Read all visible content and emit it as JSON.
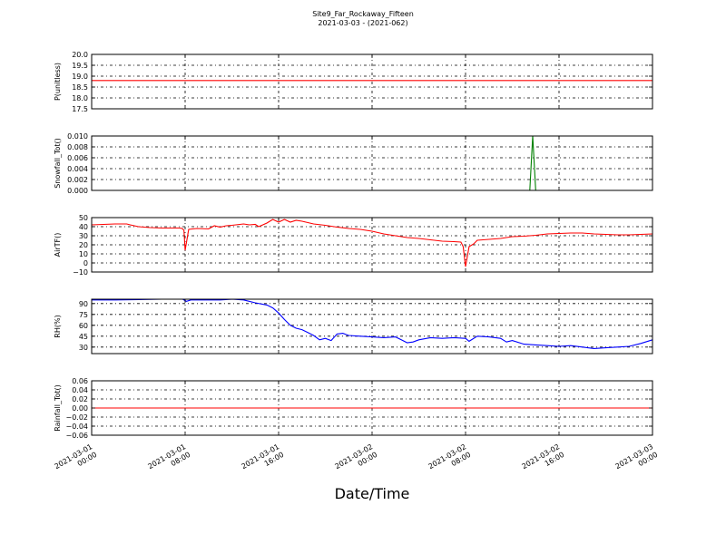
{
  "figure": {
    "title": "Site9_Far_Rockaway_Fifteen",
    "subtitle": "2021-03-03 - (2021-062)",
    "xlabel": "Date/Time"
  },
  "x_ticks": [
    {
      "t": 0,
      "line1": "2021-03-01",
      "line2": "00:00"
    },
    {
      "t": 8,
      "line1": "2021-03-01",
      "line2": "08:00"
    },
    {
      "t": 16,
      "line1": "2021-03-01",
      "line2": "16:00"
    },
    {
      "t": 24,
      "line1": "2021-03-02",
      "line2": "00:00"
    },
    {
      "t": 32,
      "line1": "2021-03-02",
      "line2": "08:00"
    },
    {
      "t": 40,
      "line1": "2021-03-02",
      "line2": "16:00"
    },
    {
      "t": 48,
      "line1": "2021-03-03",
      "line2": "00:00"
    }
  ],
  "chart_data": [
    {
      "type": "line",
      "ylabel": "P(unitless)",
      "ylim": [
        17.5,
        20.0
      ],
      "yticks": [
        "20.0",
        "19.5",
        "19.0",
        "18.5",
        "18.0",
        "17.5"
      ],
      "ytick_values": [
        20.0,
        19.5,
        19.0,
        18.5,
        18.0,
        17.5
      ],
      "grid": true,
      "color": "#ff0000",
      "x_hours": [
        0,
        48
      ],
      "values": [
        18.8,
        18.8
      ]
    },
    {
      "type": "line",
      "ylabel": "Snowfall_Tot()",
      "ylim": [
        0.0,
        0.01
      ],
      "yticks": [
        "0.010",
        "0.008",
        "0.006",
        "0.004",
        "0.002",
        "0.000"
      ],
      "ytick_values": [
        0.01,
        0.008,
        0.006,
        0.004,
        0.002,
        0.0
      ],
      "grid": true,
      "color": "#008000",
      "x_hours": [
        0,
        37.0,
        37.5,
        37.75,
        38.0,
        38.25,
        48
      ],
      "values": [
        0,
        0,
        0,
        0.01,
        0,
        0,
        0
      ]
    },
    {
      "type": "line",
      "ylabel": "AirTF()",
      "ylim": [
        -10,
        50
      ],
      "yticks": [
        "50",
        "40",
        "30",
        "20",
        "10",
        "0",
        "−10"
      ],
      "ytick_values": [
        50,
        40,
        30,
        20,
        10,
        0,
        -10
      ],
      "grid": true,
      "color": "#ff0000",
      "x_hours": [
        0,
        1,
        2,
        3,
        3.3,
        4,
        5,
        6,
        7,
        7.5,
        7.75,
        7.9,
        8.0,
        8.3,
        9,
        10,
        10.5,
        11,
        11.5,
        12,
        13,
        13.5,
        14,
        14.3,
        15,
        15.5,
        16,
        16.5,
        17,
        17.5,
        18,
        19,
        20,
        21,
        22,
        23,
        24,
        25,
        26,
        27,
        28,
        29,
        30,
        31,
        31.6,
        31.8,
        32.0,
        32.3,
        32.7,
        33,
        34,
        35,
        35.5,
        36,
        37,
        38,
        39,
        40,
        41,
        42,
        43,
        44,
        45,
        46,
        47,
        48
      ],
      "values": [
        42,
        42.5,
        43,
        43,
        42,
        40,
        39,
        38.5,
        38.5,
        38.5,
        38,
        36,
        14,
        37,
        38,
        37.5,
        41,
        39.5,
        41,
        41.5,
        43,
        42,
        42.5,
        40,
        44,
        48,
        45,
        48,
        45,
        47,
        46,
        43,
        41.5,
        39.5,
        38,
        37,
        35,
        32,
        30,
        28,
        27,
        25.5,
        24,
        23.5,
        23,
        18,
        -4,
        18,
        21,
        25,
        26,
        27,
        28,
        29,
        29.5,
        30.5,
        32,
        32.5,
        33,
        33,
        32,
        31.5,
        31,
        31,
        31.5,
        32
      ]
    },
    {
      "type": "line",
      "ylabel": "RH(%)",
      "ylim": [
        21,
        96
      ],
      "yticks": [
        "90",
        "75",
        "60",
        "45",
        "30"
      ],
      "ytick_values": [
        90,
        75,
        60,
        45,
        30
      ],
      "grid": true,
      "color": "#0000ff",
      "x_hours": [
        0,
        2,
        4,
        6,
        7.8,
        8.1,
        8.5,
        10,
        11,
        12,
        13,
        14,
        15,
        15.5,
        16,
        16.5,
        17,
        17.5,
        18,
        18.5,
        19,
        19.5,
        20,
        20.5,
        21,
        21.5,
        22,
        23,
        24,
        25,
        26,
        26.5,
        27,
        27.5,
        28,
        29,
        30,
        31,
        32,
        32.3,
        33,
        34,
        35,
        35.5,
        36,
        37,
        38,
        39,
        40,
        41,
        42,
        43,
        44,
        45,
        46,
        47,
        48
      ],
      "values": [
        95,
        95,
        95.5,
        96,
        96,
        93,
        95,
        95,
        95,
        96,
        95,
        91,
        88,
        84,
        77,
        68,
        60,
        56,
        54,
        50,
        46,
        40,
        42,
        39,
        48,
        49,
        46,
        45,
        44,
        43,
        44,
        40,
        36,
        37,
        40,
        43,
        42,
        43,
        42,
        38,
        45,
        44,
        42,
        37,
        39,
        34,
        33,
        32,
        31,
        32,
        30,
        28,
        29,
        30,
        31,
        35,
        40
      ]
    },
    {
      "type": "line",
      "ylabel": "Rainfall_Tot()",
      "ylim": [
        -0.06,
        0.06
      ],
      "yticks": [
        "0.06",
        "0.04",
        "0.02",
        "0.00",
        "−0.02",
        "−0.04",
        "−0.06"
      ],
      "ytick_values": [
        0.06,
        0.04,
        0.02,
        0.0,
        -0.02,
        -0.04,
        -0.06
      ],
      "grid": true,
      "color": "#ff0000",
      "x_hours": [
        0,
        48
      ],
      "values": [
        0,
        0
      ]
    }
  ]
}
